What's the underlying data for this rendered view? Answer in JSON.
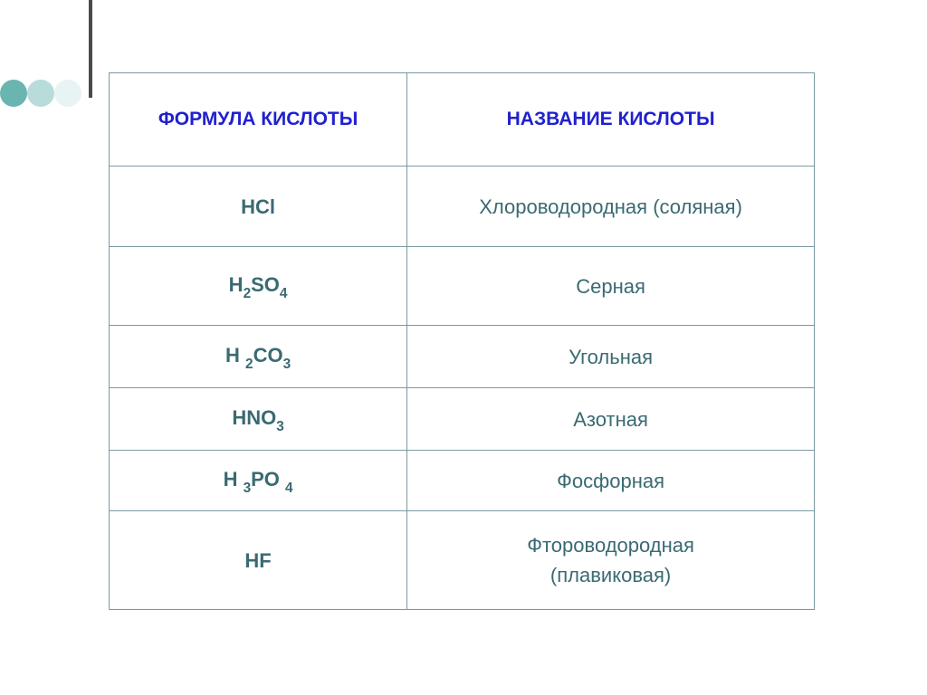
{
  "decor": {
    "vertical_line_color": "#4a4a4a",
    "dot_colors": [
      "#6bb5b0",
      "#b8dcd9",
      "#e8f4f3"
    ]
  },
  "table": {
    "border_color": "#7a9aa0",
    "header": {
      "text_color": "#2020d0",
      "fontsize": 21,
      "col1": "ФОРМУЛА КИСЛОТЫ",
      "col2": "НАЗВАНИЕ КИСЛОТЫ"
    },
    "body_text_color": "#3a6a72",
    "body_fontsize": 22,
    "rows": [
      {
        "formula_html": "HCl",
        "name_html": "Хлороводородная (соляная)"
      },
      {
        "formula_html": "H<span class=\"sub\">2</span>SO<span class=\"sub\">4</span>",
        "name_html": "Серная"
      },
      {
        "formula_html": "H <span class=\"sub\">2</span>CO<span class=\"sub\">3</span>",
        "name_html": "Угольная"
      },
      {
        "formula_html": "HNO<span class=\"sub\">3</span>",
        "name_html": "Азотная"
      },
      {
        "formula_html": "H <span class=\"sub\">3</span>PO <span class=\"sub\">4</span>",
        "name_html": "Фосфорная"
      },
      {
        "formula_html": "HF",
        "name_html": "Фтороводородная<br>(плавиковая)"
      }
    ]
  }
}
